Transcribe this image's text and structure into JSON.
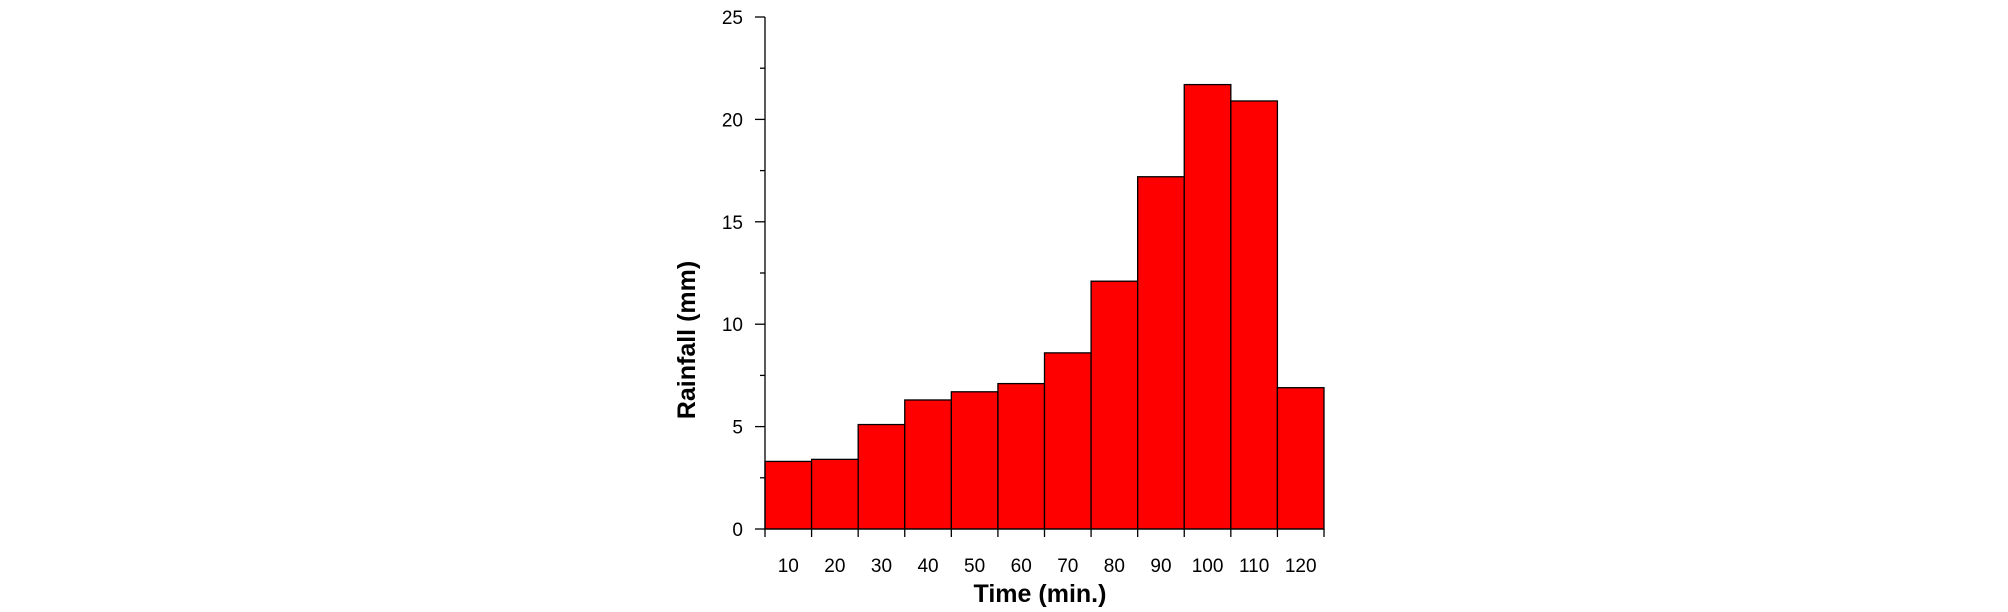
{
  "chart_data": {
    "type": "bar",
    "title": "",
    "xlabel": "Time (min.)",
    "ylabel": "Rainfall (mm)",
    "categories": [
      "10",
      "20",
      "30",
      "40",
      "50",
      "60",
      "70",
      "80",
      "90",
      "100",
      "110",
      "120"
    ],
    "values": [
      3.3,
      3.4,
      5.1,
      6.3,
      6.7,
      7.1,
      8.6,
      12.1,
      17.2,
      21.7,
      20.9,
      6.9
    ],
    "ylim": [
      0,
      25
    ],
    "yticks": [
      "0",
      "5",
      "10",
      "15",
      "20",
      "25"
    ],
    "grid": false,
    "legend": "none",
    "bar_color": "#ff0000",
    "edge_color": "#000000"
  }
}
